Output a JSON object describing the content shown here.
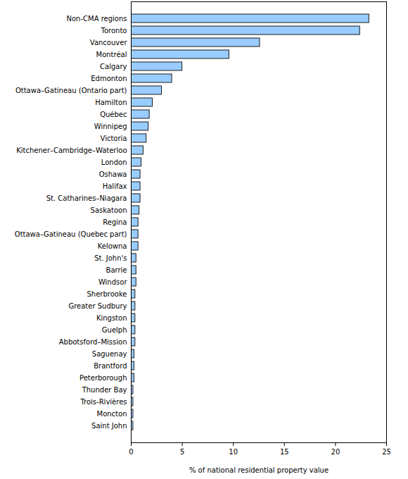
{
  "chart_data": {
    "type": "bar",
    "orientation": "horizontal",
    "categories": [
      "Non-CMA regions",
      "Toronto",
      "Vancouver",
      "Montréal",
      "Calgary",
      "Edmonton",
      "Ottawa–Gatineau (Ontario part)",
      "Hamilton",
      "Québec",
      "Winnipeg",
      "Victoria",
      "Kitchener–Cambridge–Waterloo",
      "London",
      "Oshawa",
      "Halifax",
      "St. Catharines–Niagara",
      "Saskatoon",
      "Regina",
      "Ottawa–Gatineau (Quebec part)",
      "Kelowna",
      "St. John's",
      "Barrie",
      "Windsor",
      "Sherbrooke",
      "Greater Sudbury",
      "Kingston",
      "Guelph",
      "Abbotsford–Mission",
      "Saguenay",
      "Brantford",
      "Peterborough",
      "Thunder Bay",
      "Trois-Rivières",
      "Moncton",
      "Saint John"
    ],
    "values": [
      23.3,
      22.4,
      12.6,
      9.6,
      5.0,
      4.0,
      3.0,
      2.1,
      1.8,
      1.7,
      1.5,
      1.2,
      1.0,
      0.9,
      0.9,
      0.9,
      0.8,
      0.7,
      0.7,
      0.7,
      0.5,
      0.5,
      0.5,
      0.4,
      0.4,
      0.4,
      0.4,
      0.4,
      0.3,
      0.3,
      0.3,
      0.2,
      0.2,
      0.2,
      0.2
    ],
    "color": "#99ccff",
    "x_label": "% of national residential property value",
    "xlim": [
      0,
      25
    ],
    "xticks": [
      0,
      5,
      10,
      15,
      20,
      25
    ],
    "grid": false
  }
}
